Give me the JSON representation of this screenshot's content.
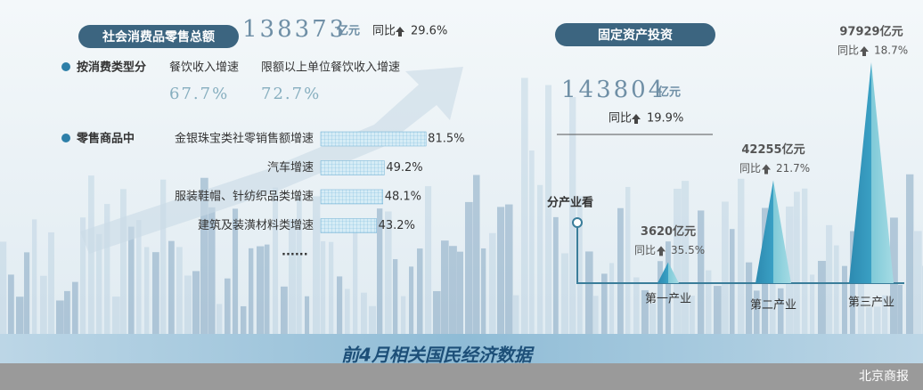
{
  "retail": {
    "title": "社会消费品零售总额",
    "total": "138373",
    "unit": "亿元",
    "yoy_label": "同比",
    "yoy": "29.6%",
    "by_type": {
      "label": "按消费类型分",
      "items": [
        {
          "name": "餐饮收入增速",
          "value": "67.7%"
        },
        {
          "name": "限额以上单位餐饮收入增速",
          "value": "72.7%"
        }
      ]
    },
    "by_goods": {
      "label": "零售商品中",
      "items": [
        {
          "name": "金银珠宝类社零销售额增速",
          "value": 81.5,
          "value_label": "81.5%"
        },
        {
          "name": "汽车增速",
          "value": 49.2,
          "value_label": "49.2%"
        },
        {
          "name": "服装鞋帽、针纺织品类增速",
          "value": 48.1,
          "value_label": "48.1%"
        },
        {
          "name": "建筑及装潢材料类增速",
          "value": 43.2,
          "value_label": "43.2%"
        }
      ],
      "ellipsis": "......"
    }
  },
  "investment": {
    "title": "固定资产投资",
    "total": "143804",
    "unit": "亿元",
    "yoy_label": "同比",
    "yoy": "19.9%",
    "by_industry": {
      "label": "分产业看",
      "items": [
        {
          "name": "第一产业",
          "value": 3620,
          "value_label": "3620亿元",
          "yoy": "35.5%"
        },
        {
          "name": "第二产业",
          "value": 42255,
          "value_label": "42255亿元",
          "yoy": "21.7%"
        },
        {
          "name": "第三产业",
          "value": 97929,
          "value_label": "97929亿元",
          "yoy": "18.7%"
        }
      ]
    }
  },
  "footer": {
    "title": "前4月相关国民经济数据",
    "source": "北京商报"
  }
}
